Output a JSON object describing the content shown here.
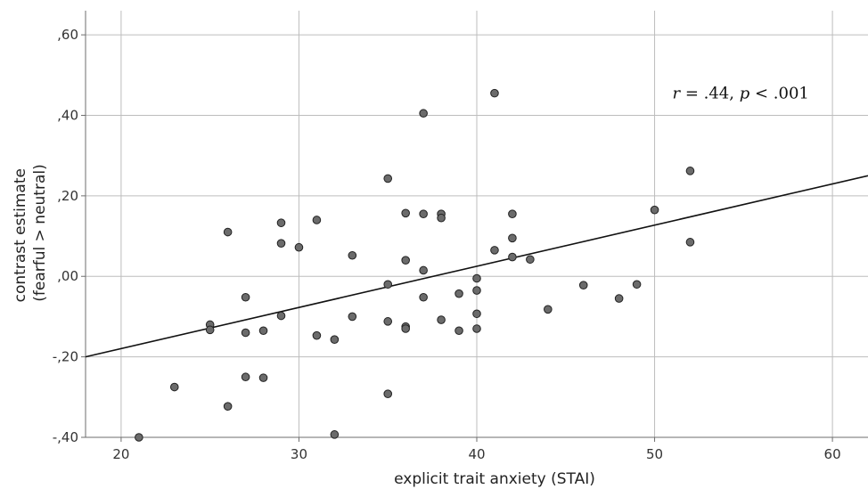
{
  "chart_data": {
    "type": "scatter",
    "title": "",
    "xlabel": "explicit trait anxiety (STAI)",
    "ylabel_lines": [
      "contrast estimate",
      "(fearful > neutral)"
    ],
    "xlim": [
      18,
      62
    ],
    "ylim": [
      -0.4,
      0.66
    ],
    "x_ticks": [
      20,
      30,
      40,
      50,
      60
    ],
    "x_tick_labels": [
      "20",
      "30",
      "40",
      "50",
      "60"
    ],
    "y_ticks": [
      -0.4,
      -0.2,
      0.0,
      0.2,
      0.4,
      0.6
    ],
    "y_tick_labels": [
      "-,40",
      "-,20",
      ",00",
      ",20",
      ",40",
      ",60"
    ],
    "grid": true,
    "annotation": {
      "r_symbol": "r",
      "r_value": " = .44, ",
      "p_symbol": "p",
      "p_value": " < .001",
      "x": 51,
      "y": 0.455
    },
    "fit_line": {
      "x": [
        18,
        62
      ],
      "y": [
        -0.2,
        0.25
      ]
    },
    "points": [
      {
        "x": 21,
        "y": -0.4
      },
      {
        "x": 23,
        "y": -0.275
      },
      {
        "x": 25,
        "y": -0.12
      },
      {
        "x": 25,
        "y": -0.133
      },
      {
        "x": 26,
        "y": 0.11
      },
      {
        "x": 26,
        "y": -0.323
      },
      {
        "x": 27,
        "y": -0.052
      },
      {
        "x": 27,
        "y": -0.14
      },
      {
        "x": 27,
        "y": -0.25
      },
      {
        "x": 28,
        "y": -0.135
      },
      {
        "x": 28,
        "y": -0.252
      },
      {
        "x": 29,
        "y": 0.133
      },
      {
        "x": 29,
        "y": 0.082
      },
      {
        "x": 29,
        "y": -0.098
      },
      {
        "x": 30,
        "y": 0.072
      },
      {
        "x": 31,
        "y": 0.14
      },
      {
        "x": 31,
        "y": -0.147
      },
      {
        "x": 32,
        "y": -0.157
      },
      {
        "x": 32,
        "y": -0.393
      },
      {
        "x": 33,
        "y": 0.052
      },
      {
        "x": 33,
        "y": -0.1
      },
      {
        "x": 35,
        "y": 0.243
      },
      {
        "x": 35,
        "y": -0.02
      },
      {
        "x": 35,
        "y": -0.112
      },
      {
        "x": 35,
        "y": -0.292
      },
      {
        "x": 36,
        "y": 0.157
      },
      {
        "x": 36,
        "y": 0.04
      },
      {
        "x": 36,
        "y": -0.125
      },
      {
        "x": 36,
        "y": -0.13
      },
      {
        "x": 37,
        "y": 0.405
      },
      {
        "x": 37,
        "y": 0.155
      },
      {
        "x": 37,
        "y": 0.015
      },
      {
        "x": 37,
        "y": -0.052
      },
      {
        "x": 38,
        "y": 0.155
      },
      {
        "x": 38,
        "y": 0.145
      },
      {
        "x": 38,
        "y": -0.108
      },
      {
        "x": 39,
        "y": -0.043
      },
      {
        "x": 39,
        "y": -0.135
      },
      {
        "x": 40,
        "y": -0.005
      },
      {
        "x": 40,
        "y": -0.035
      },
      {
        "x": 40,
        "y": -0.093
      },
      {
        "x": 40,
        "y": -0.13
      },
      {
        "x": 41,
        "y": 0.455
      },
      {
        "x": 41,
        "y": 0.065
      },
      {
        "x": 42,
        "y": 0.155
      },
      {
        "x": 42,
        "y": 0.095
      },
      {
        "x": 42,
        "y": 0.048
      },
      {
        "x": 43,
        "y": 0.042
      },
      {
        "x": 44,
        "y": -0.082
      },
      {
        "x": 46,
        "y": -0.022
      },
      {
        "x": 48,
        "y": -0.055
      },
      {
        "x": 49,
        "y": -0.02
      },
      {
        "x": 50,
        "y": 0.165
      },
      {
        "x": 52,
        "y": 0.262
      },
      {
        "x": 52,
        "y": 0.085
      }
    ],
    "colors": {
      "point_fill": "#6b6b6b",
      "point_stroke": "#222222",
      "grid": "#bdbdbd",
      "fit_line": "#111111"
    }
  }
}
